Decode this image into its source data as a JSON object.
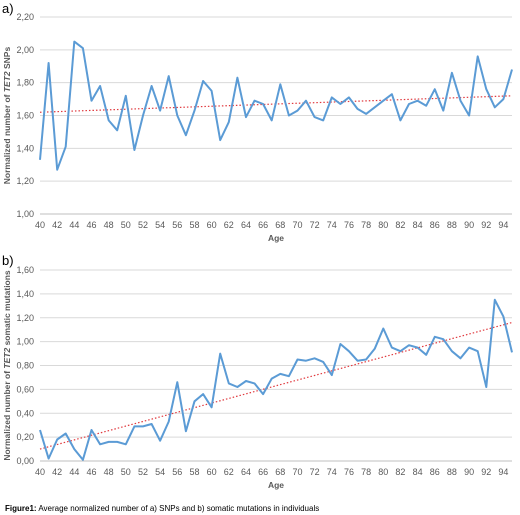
{
  "caption": {
    "label": "Figure1:",
    "text": " Average normalized number of a) SNPs and b) somatic mutations in individuals"
  },
  "chart_data": [
    {
      "panel": "a)",
      "type": "line",
      "title": "",
      "xlabel": "Age",
      "ylabel_prefix": "Normalized number of ",
      "ylabel_italic": "TET2",
      "ylabel_suffix": " SNPs",
      "ylim": [
        1.0,
        2.2
      ],
      "yticks": [
        "1,00",
        "1,20",
        "1,40",
        "1,60",
        "1,80",
        "2,00",
        "2,20"
      ],
      "xticks": [
        40,
        42,
        44,
        46,
        48,
        50,
        52,
        54,
        56,
        58,
        60,
        62,
        64,
        66,
        68,
        70,
        72,
        74,
        76,
        78,
        80,
        82,
        84,
        86,
        88,
        90,
        92,
        94
      ],
      "grid": true,
      "trendline": true,
      "series_color": "#5b9bd5",
      "trend_color": "#e0393e",
      "x": [
        40,
        41,
        42,
        43,
        44,
        45,
        46,
        47,
        48,
        49,
        50,
        51,
        52,
        53,
        54,
        55,
        56,
        57,
        58,
        59,
        60,
        61,
        62,
        63,
        64,
        65,
        66,
        67,
        68,
        69,
        70,
        71,
        72,
        73,
        74,
        75,
        76,
        77,
        78,
        79,
        80,
        81,
        82,
        83,
        84,
        85,
        86,
        87,
        88,
        89,
        90,
        91,
        92,
        93,
        94,
        95
      ],
      "values": [
        1.33,
        1.92,
        1.27,
        1.41,
        2.05,
        2.01,
        1.69,
        1.78,
        1.57,
        1.51,
        1.72,
        1.39,
        1.6,
        1.78,
        1.63,
        1.84,
        1.6,
        1.48,
        1.63,
        1.81,
        1.75,
        1.45,
        1.56,
        1.83,
        1.59,
        1.69,
        1.67,
        1.57,
        1.79,
        1.6,
        1.63,
        1.69,
        1.59,
        1.57,
        1.71,
        1.67,
        1.71,
        1.64,
        1.61,
        1.65,
        1.69,
        1.73,
        1.57,
        1.67,
        1.69,
        1.66,
        1.76,
        1.63,
        1.86,
        1.69,
        1.6,
        1.96,
        1.76,
        1.65,
        1.7,
        1.88
      ],
      "trend": [
        1.62,
        1.72
      ]
    },
    {
      "panel": "b)",
      "type": "line",
      "title": "",
      "xlabel": "Age",
      "ylabel_prefix": "Normalized number of ",
      "ylabel_italic": "TET2",
      "ylabel_suffix": " somatic mutations",
      "ylim": [
        0.0,
        1.6
      ],
      "yticks": [
        "0,00",
        "0,20",
        "0,40",
        "0,60",
        "0,80",
        "1,00",
        "1,20",
        "1,40",
        "1,60"
      ],
      "xticks": [
        40,
        42,
        44,
        46,
        48,
        50,
        52,
        54,
        56,
        58,
        60,
        62,
        64,
        66,
        68,
        70,
        72,
        74,
        76,
        78,
        80,
        82,
        84,
        86,
        88,
        90,
        92,
        94
      ],
      "grid": true,
      "trendline": true,
      "series_color": "#5b9bd5",
      "trend_color": "#e0393e",
      "x": [
        40,
        41,
        42,
        43,
        44,
        45,
        46,
        47,
        48,
        49,
        50,
        51,
        52,
        53,
        54,
        55,
        56,
        57,
        58,
        59,
        60,
        61,
        62,
        63,
        64,
        65,
        66,
        67,
        68,
        69,
        70,
        71,
        72,
        73,
        74,
        75,
        76,
        77,
        78,
        79,
        80,
        81,
        82,
        83,
        84,
        85,
        86,
        87,
        88,
        89,
        90,
        91,
        92,
        93,
        94,
        95
      ],
      "values": [
        0.26,
        0.02,
        0.18,
        0.23,
        0.1,
        0.01,
        0.26,
        0.14,
        0.16,
        0.16,
        0.14,
        0.29,
        0.29,
        0.31,
        0.17,
        0.33,
        0.66,
        0.25,
        0.5,
        0.56,
        0.45,
        0.9,
        0.65,
        0.62,
        0.67,
        0.65,
        0.56,
        0.69,
        0.73,
        0.71,
        0.85,
        0.84,
        0.86,
        0.83,
        0.72,
        0.98,
        0.92,
        0.84,
        0.85,
        0.94,
        1.11,
        0.95,
        0.92,
        0.97,
        0.95,
        0.89,
        1.04,
        1.02,
        0.92,
        0.86,
        0.95,
        0.92,
        0.62,
        1.35,
        1.21,
        0.91
      ],
      "trend": [
        0.1,
        1.16
      ]
    }
  ]
}
